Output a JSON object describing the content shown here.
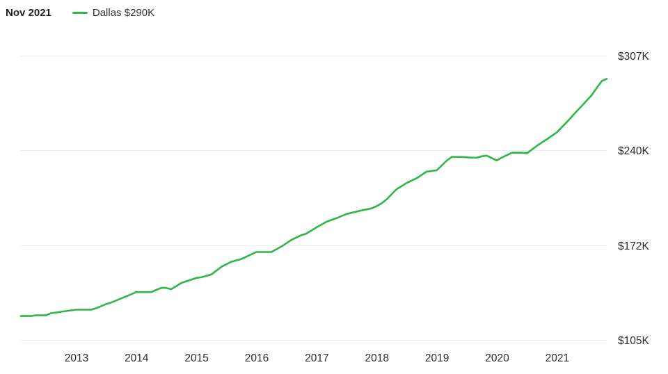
{
  "header": {
    "date": "Nov 2021",
    "legend_label": "Dallas $290K"
  },
  "colors": {
    "series": "#2db744",
    "grid": "#ececec",
    "text": "#2b2b2b"
  },
  "chart_data": {
    "type": "line",
    "title": "",
    "xlabel": "",
    "ylabel": "",
    "grid": true,
    "legend_placement": "top-left",
    "xlim": [
      2012.08,
      2021.83
    ],
    "ylim": [
      105,
      307
    ],
    "y_ticks": [
      {
        "value": 307,
        "label": "$307K"
      },
      {
        "value": 240,
        "label": "$240K"
      },
      {
        "value": 172,
        "label": "$172K"
      },
      {
        "value": 105,
        "label": "$105K"
      }
    ],
    "x_ticks": [
      {
        "value": 2013,
        "label": "2013"
      },
      {
        "value": 2014,
        "label": "2014"
      },
      {
        "value": 2015,
        "label": "2015"
      },
      {
        "value": 2016,
        "label": "2016"
      },
      {
        "value": 2017,
        "label": "2017"
      },
      {
        "value": 2018,
        "label": "2018"
      },
      {
        "value": 2019,
        "label": "2019"
      },
      {
        "value": 2020,
        "label": "2020"
      },
      {
        "value": 2021,
        "label": "2021"
      }
    ],
    "series": [
      {
        "name": "Dallas",
        "x": [
          2012.08,
          2012.25,
          2012.33,
          2012.5,
          2012.58,
          2012.67,
          2012.83,
          2013.0,
          2013.25,
          2013.33,
          2013.5,
          2013.58,
          2013.75,
          2014.0,
          2014.25,
          2014.33,
          2014.42,
          2014.5,
          2014.58,
          2014.75,
          2015.0,
          2015.08,
          2015.25,
          2015.42,
          2015.58,
          2015.75,
          2016.0,
          2016.25,
          2016.42,
          2016.58,
          2016.75,
          2016.83,
          2017.0,
          2017.17,
          2017.33,
          2017.5,
          2017.75,
          2017.92,
          2018.0,
          2018.08,
          2018.17,
          2018.33,
          2018.5,
          2018.67,
          2018.83,
          2019.0,
          2019.17,
          2019.25,
          2019.42,
          2019.58,
          2019.67,
          2019.75,
          2019.83,
          2020.0,
          2020.08,
          2020.25,
          2020.42,
          2020.5,
          2020.67,
          2020.83,
          2021.0,
          2021.17,
          2021.33,
          2021.42,
          2021.58,
          2021.67,
          2021.75,
          2021.83
        ],
        "values": [
          122,
          122,
          122.5,
          122.5,
          124,
          124.5,
          125.5,
          126.5,
          126.5,
          127.5,
          130.5,
          131.5,
          134.5,
          139,
          139,
          140.5,
          142,
          142,
          141,
          145.5,
          149,
          149.5,
          151.5,
          157,
          160.5,
          162.5,
          167.5,
          167.5,
          171.5,
          176,
          179.5,
          180.5,
          185,
          189,
          191.5,
          194.5,
          197,
          198.5,
          200,
          202,
          205,
          212,
          216.5,
          220,
          224.5,
          225.5,
          232.5,
          235,
          235,
          234.5,
          234.5,
          235.5,
          236,
          232.5,
          234.5,
          238,
          238,
          237.5,
          243,
          247.5,
          252.5,
          260,
          267.5,
          271.5,
          279,
          284.5,
          289,
          290.5
        ]
      }
    ]
  }
}
